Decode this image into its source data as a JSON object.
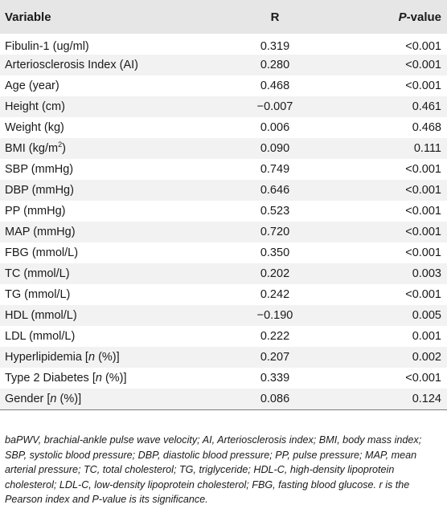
{
  "table": {
    "headers": {
      "variable": "Variable",
      "r": "R",
      "p_prefix": "P",
      "p_suffix": "-value"
    },
    "rows": [
      {
        "variable": "Fibulin-1 (ug/ml)",
        "r": "0.319",
        "p": "<0.001"
      },
      {
        "variable": "Arteriosclerosis Index (AI)",
        "r": "0.280",
        "p": "<0.001"
      },
      {
        "variable": "Age (year)",
        "r": "0.468",
        "p": "<0.001"
      },
      {
        "variable": "Height (cm)",
        "r": "−0.007",
        "p": "0.461"
      },
      {
        "variable": "Weight (kg)",
        "r": "0.006",
        "p": "0.468"
      },
      {
        "variable_prefix": "BMI (kg/m",
        "variable_sup": "2",
        "variable_suffix": ")",
        "r": "0.090",
        "p": "0.111"
      },
      {
        "variable": "SBP (mmHg)",
        "r": "0.749",
        "p": "<0.001"
      },
      {
        "variable": "DBP (mmHg)",
        "r": "0.646",
        "p": "<0.001"
      },
      {
        "variable": "PP (mmHg)",
        "r": "0.523",
        "p": "<0.001"
      },
      {
        "variable": "MAP (mmHg)",
        "r": "0.720",
        "p": "<0.001"
      },
      {
        "variable": "FBG (mmol/L)",
        "r": "0.350",
        "p": "<0.001"
      },
      {
        "variable": "TC (mmol/L)",
        "r": "0.202",
        "p": "0.003"
      },
      {
        "variable": "TG (mmol/L)",
        "r": "0.242",
        "p": "<0.001"
      },
      {
        "variable": "HDL (mmol/L)",
        "r": "−0.190",
        "p": "0.005"
      },
      {
        "variable": "LDL (mmol/L)",
        "r": "0.222",
        "p": "0.001"
      },
      {
        "variable_prefix": "Hyperlipidemia [",
        "variable_italic": "n",
        "variable_suffix": " (%)]",
        "r": "0.207",
        "p": "0.002"
      },
      {
        "variable_prefix": "Type 2 Diabetes [",
        "variable_italic": "n",
        "variable_suffix": " (%)]",
        "r": "0.339",
        "p": "<0.001"
      },
      {
        "variable_prefix": "Gender [",
        "variable_italic": "n",
        "variable_suffix": " (%)]",
        "r": "0.086",
        "p": "0.124"
      }
    ]
  },
  "footnote": "baPWV, brachial-ankle pulse wave velocity; AI, Arteriosclerosis index; BMI, body mass index; SBP, systolic blood pressure; DBP, diastolic blood pressure; PP, pulse pressure; MAP, mean arterial pressure; TC, total cholesterol; TG, triglyceride; HDL-C, high-density lipoprotein cholesterol; LDL-C, low-density lipoprotein cholesterol; FBG, fasting blood glucose. r is the Pearson index and P-value is its significance.",
  "colors": {
    "header_bg": "#e6e6e6",
    "stripe_bg": "#f2f2f2",
    "rule": "#7a7a7a"
  }
}
